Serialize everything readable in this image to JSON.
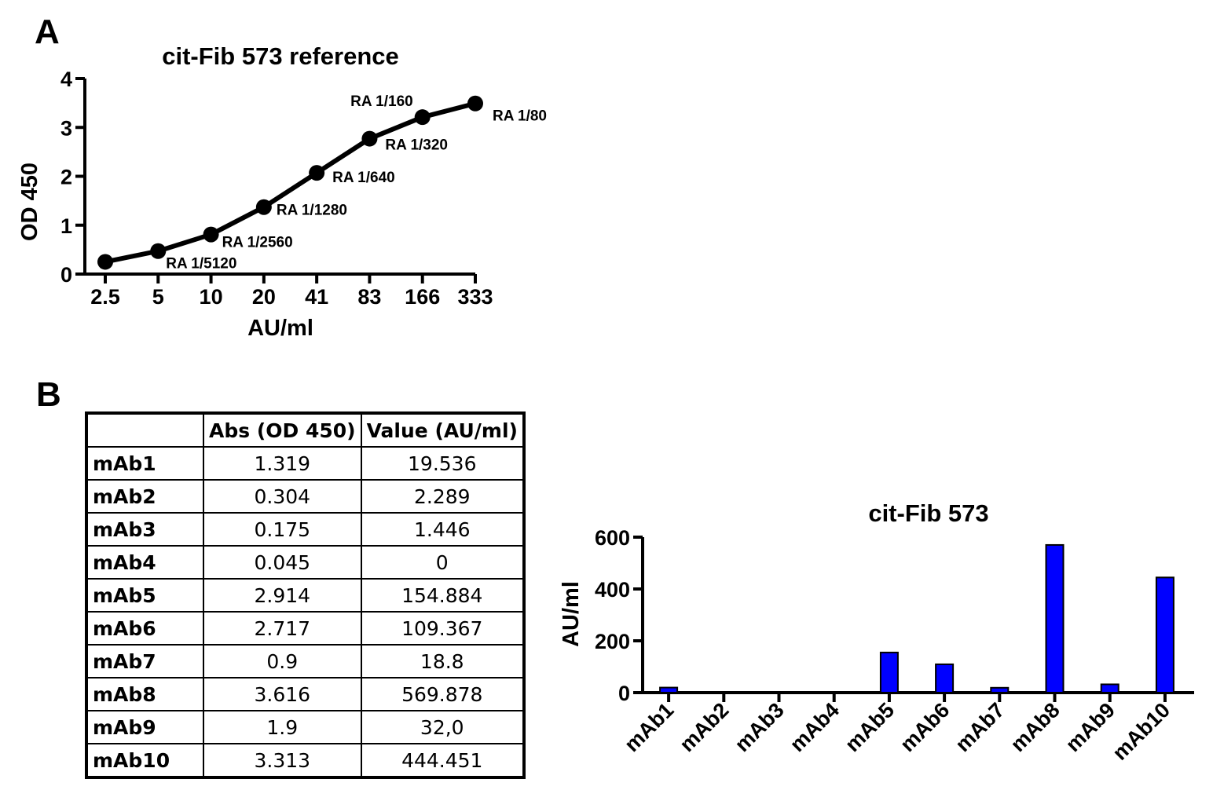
{
  "panel_a_letter": "A",
  "panel_b_letter": "B",
  "chart_data": [
    {
      "type": "line",
      "title": "cit-Fib 573 reference",
      "xlabel": "AU/ml",
      "ylabel": "OD 450",
      "x_categories": [
        "2.5",
        "5",
        "10",
        "20",
        "41",
        "83",
        "166",
        "333"
      ],
      "ylim": [
        0,
        4
      ],
      "yticks": [
        "0",
        "1",
        "2",
        "3",
        "4"
      ],
      "series": [
        {
          "values": [
            0.25,
            0.47,
            0.81,
            1.37,
            2.07,
            2.77,
            3.21,
            3.49
          ]
        }
      ],
      "point_labels": [
        "",
        "RA 1/5120",
        "RA 1/2560",
        "RA 1/1280",
        "RA 1/640",
        "RA 1/320",
        "RA 1/160",
        "RA 1/80"
      ]
    },
    {
      "type": "table",
      "headers": [
        "",
        "Abs (OD 450)",
        "Value (AU/ml)"
      ],
      "rows": [
        [
          "mAb1",
          "1.319",
          "19.536"
        ],
        [
          "mAb2",
          "0.304",
          "2.289"
        ],
        [
          "mAb3",
          "0.175",
          "1.446"
        ],
        [
          "mAb4",
          "0.045",
          "0"
        ],
        [
          "mAb5",
          "2.914",
          "154.884"
        ],
        [
          "mAb6",
          "2.717",
          "109.367"
        ],
        [
          "mAb7",
          "0.9",
          "18.8"
        ],
        [
          "mAb8",
          "3.616",
          "569.878"
        ],
        [
          "mAb9",
          "1.9",
          "32,0"
        ],
        [
          "mAb10",
          "3.313",
          "444.451"
        ]
      ]
    },
    {
      "type": "bar",
      "title": "cit-Fib 573",
      "ylabel": "AU/ml",
      "categories": [
        "mAb1",
        "mAb2",
        "mAb3",
        "mAb4",
        "mAb5",
        "mAb6",
        "mAb7",
        "mAb8",
        "mAb9",
        "mAb10"
      ],
      "values": [
        19.536,
        2.289,
        1.446,
        0,
        154.884,
        109.367,
        18.8,
        569.878,
        32.0,
        444.451
      ],
      "ylim": [
        0,
        600
      ],
      "yticks": [
        "0",
        "200",
        "400",
        "600"
      ],
      "bar_color": "#0000ff"
    }
  ]
}
